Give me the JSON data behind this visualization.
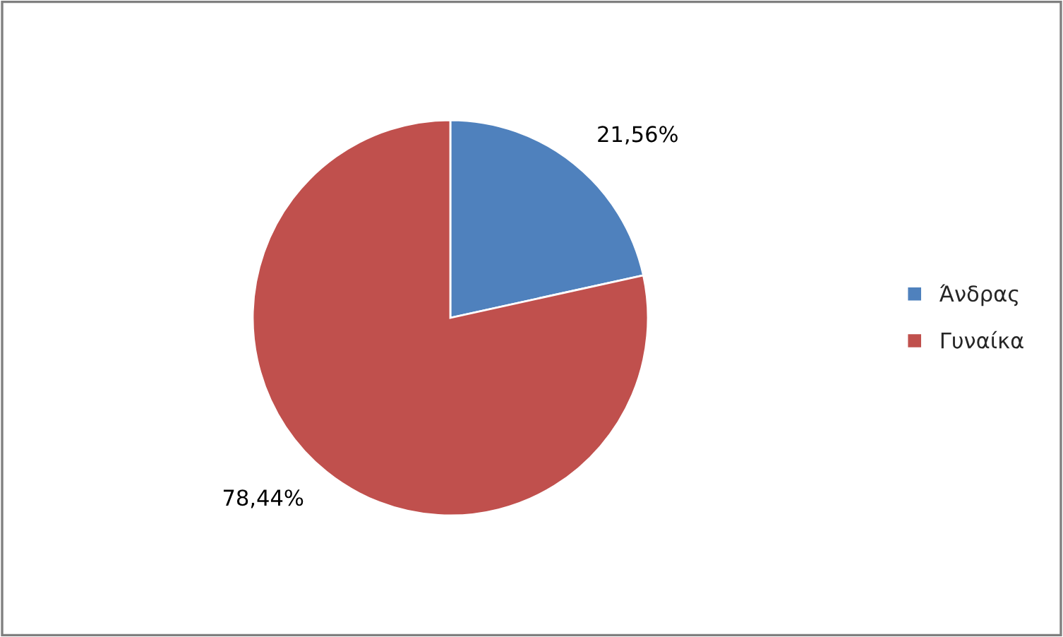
{
  "chart_data": {
    "type": "pie",
    "categories": [
      "Άνδρας",
      "Γυναίκα"
    ],
    "values": [
      21.56,
      78.44
    ],
    "colors": [
      "#4f81bd",
      "#c0504d"
    ],
    "value_labels": [
      "21,56%",
      "78,44%"
    ],
    "legend": "right"
  }
}
